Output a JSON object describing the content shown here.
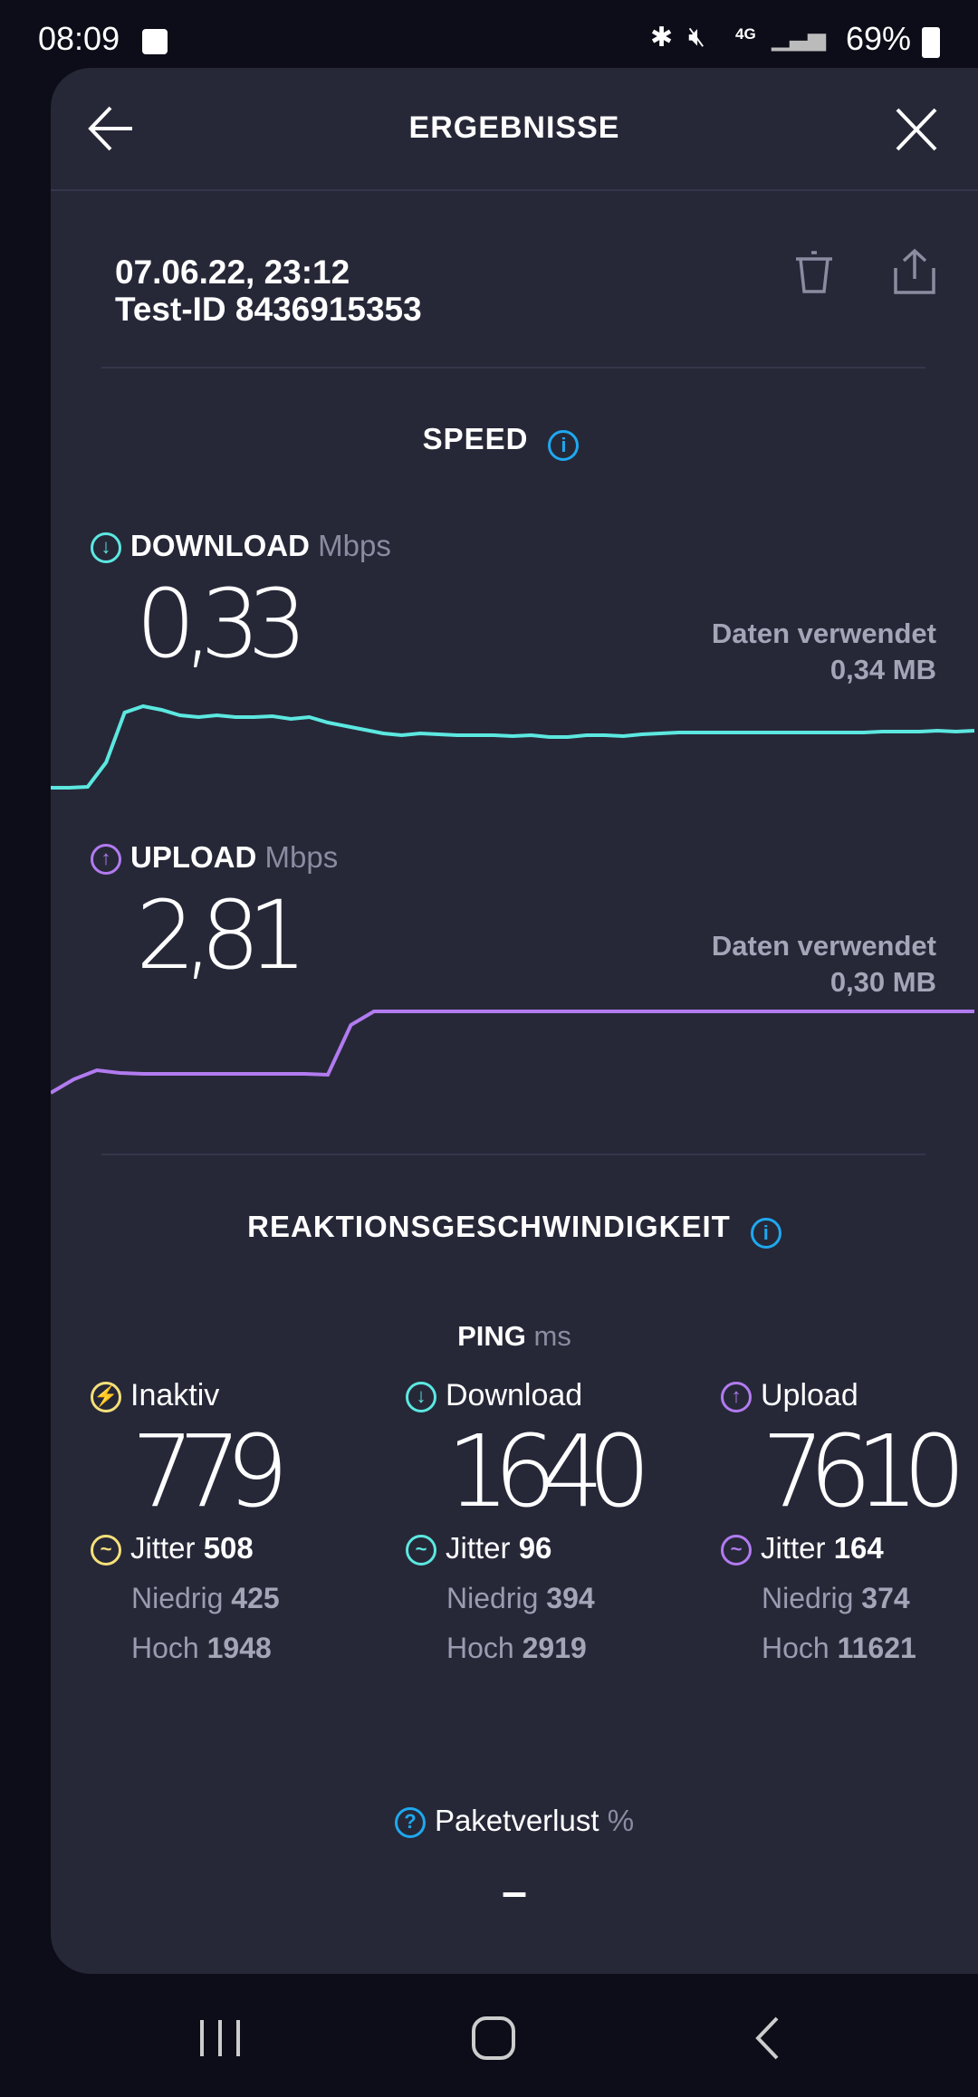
{
  "status_bar": {
    "time": "08:09",
    "network": "4G",
    "battery": "69%"
  },
  "header": {
    "title": "ERGEBNISSE"
  },
  "test": {
    "datetime": "07.06.22, 23:12",
    "test_id": "Test-ID 8436915353"
  },
  "speed": {
    "title": "SPEED",
    "download": {
      "label": "DOWNLOAD",
      "unit": "Mbps",
      "value": "0,33",
      "data_used_label": "Daten verwendet",
      "data_used": "0,34 MB",
      "color": "#5ce8e0",
      "graph": [
        0.02,
        0.02,
        0.03,
        0.3,
        0.85,
        0.92,
        0.88,
        0.82,
        0.8,
        0.82,
        0.8,
        0.8,
        0.81,
        0.78,
        0.8,
        0.74,
        0.7,
        0.66,
        0.62,
        0.6,
        0.62,
        0.61,
        0.6,
        0.6,
        0.6,
        0.59,
        0.6,
        0.58,
        0.58,
        0.6,
        0.6,
        0.59,
        0.61,
        0.62,
        0.63,
        0.63,
        0.63,
        0.63,
        0.63,
        0.63,
        0.63,
        0.63,
        0.63,
        0.63,
        0.63,
        0.64,
        0.64,
        0.64,
        0.65,
        0.64,
        0.65
      ]
    },
    "upload": {
      "label": "UPLOAD",
      "unit": "Mbps",
      "value": "2,81",
      "data_used_label": "Daten verwendet",
      "data_used": "0,30 MB",
      "color": "#b27bf0",
      "graph": [
        0.05,
        0.2,
        0.3,
        0.27,
        0.26,
        0.26,
        0.26,
        0.26,
        0.26,
        0.26,
        0.26,
        0.26,
        0.25,
        0.8,
        0.95,
        0.95,
        0.95,
        0.95,
        0.95,
        0.95,
        0.95,
        0.95,
        0.95,
        0.95,
        0.95,
        0.95,
        0.95,
        0.95,
        0.95,
        0.95,
        0.95,
        0.95,
        0.95,
        0.95,
        0.95,
        0.95,
        0.95,
        0.95,
        0.95,
        0.95,
        0.95
      ]
    }
  },
  "latency": {
    "title": "REAKTIONSGESCHWINDIGKEIT",
    "ping_label": "PING",
    "ping_unit": "ms",
    "columns": [
      {
        "label": "Inaktiv",
        "value": "779",
        "jitter_label": "Jitter",
        "jitter": "508",
        "low_label": "Niedrig",
        "low": "425",
        "high_label": "Hoch",
        "high": "1948",
        "color": "#f5e07a"
      },
      {
        "label": "Download",
        "value": "1640",
        "jitter_label": "Jitter",
        "jitter": "96",
        "low_label": "Niedrig",
        "low": "394",
        "high_label": "Hoch",
        "high": "2919",
        "color": "#5ce8e0"
      },
      {
        "label": "Upload",
        "value": "7610",
        "jitter_label": "Jitter",
        "jitter": "164",
        "low_label": "Niedrig",
        "low": "374",
        "high_label": "Hoch",
        "high": "11621",
        "color": "#b27bf0"
      }
    ],
    "packet_loss": {
      "label": "Paketverlust",
      "unit": "%",
      "value": "–"
    }
  }
}
